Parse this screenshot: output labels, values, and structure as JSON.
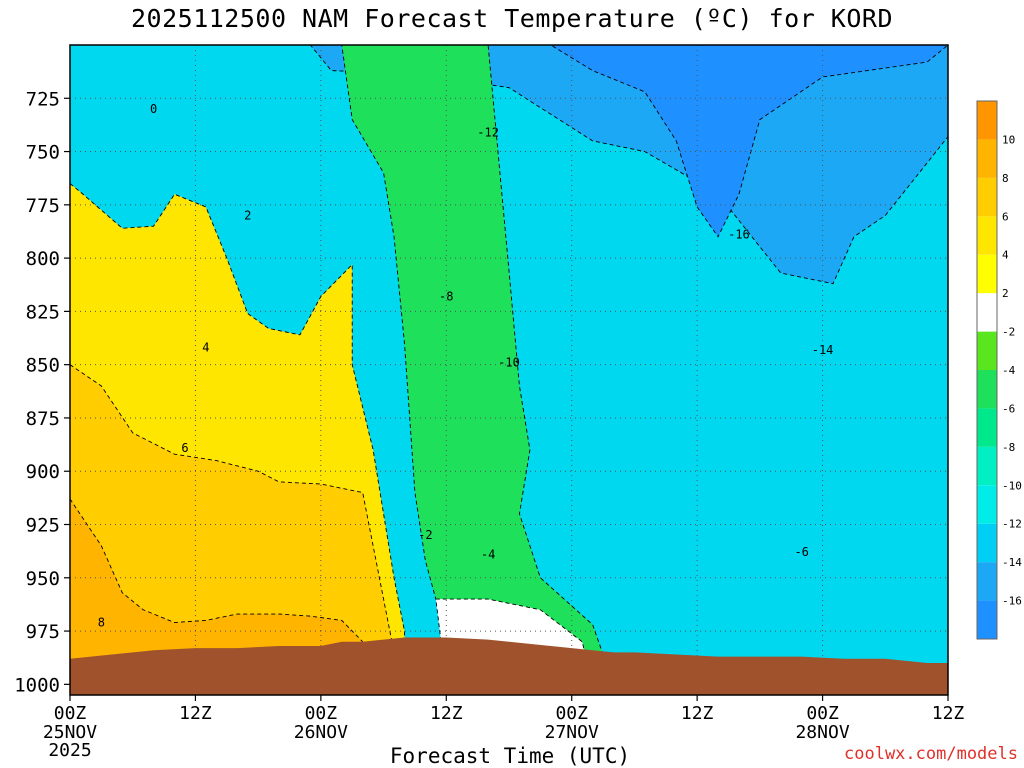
{
  "chart_data": {
    "type": "heatmap",
    "title": "2025112500 NAM Forecast Temperature (ºC) for KORD",
    "xlabel": "Forecast Time (UTC)",
    "ylabel": "",
    "credit": "coolwx.com/models",
    "x_hours_range": [
      0,
      84
    ],
    "y_pressure_range": [
      700,
      1005
    ],
    "x_ticks": [
      {
        "hour": 0,
        "label": "00Z",
        "date": "25NOV",
        "year": "2025"
      },
      {
        "hour": 12,
        "label": "12Z",
        "date": "",
        "year": ""
      },
      {
        "hour": 24,
        "label": "00Z",
        "date": "26NOV",
        "year": ""
      },
      {
        "hour": 36,
        "label": "12Z",
        "date": "",
        "year": ""
      },
      {
        "hour": 48,
        "label": "00Z",
        "date": "27NOV",
        "year": ""
      },
      {
        "hour": 60,
        "label": "12Z",
        "date": "",
        "year": ""
      },
      {
        "hour": 72,
        "label": "00Z",
        "date": "28NOV",
        "year": ""
      },
      {
        "hour": 84,
        "label": "12Z",
        "date": "",
        "year": ""
      }
    ],
    "y_ticks": [
      {
        "p": 725,
        "label": "725"
      },
      {
        "p": 750,
        "label": "750"
      },
      {
        "p": 775,
        "label": "775"
      },
      {
        "p": 800,
        "label": "800"
      },
      {
        "p": 825,
        "label": "825"
      },
      {
        "p": 850,
        "label": "850"
      },
      {
        "p": 875,
        "label": "875"
      },
      {
        "p": 900,
        "label": "900"
      },
      {
        "p": 925,
        "label": "925"
      },
      {
        "p": 950,
        "label": "950"
      },
      {
        "p": 975,
        "label": "975"
      },
      {
        "p": 1000,
        "label": "1000"
      }
    ],
    "colorbar": [
      {
        "min": -18,
        "max": -16,
        "color": "#1e90ff",
        "label": ""
      },
      {
        "min": -16,
        "max": -14,
        "color": "#1ca8f4",
        "label": "-16"
      },
      {
        "min": -14,
        "max": -12,
        "color": "#00cff5",
        "label": "-14"
      },
      {
        "min": -12,
        "max": -10,
        "color": "#00ece8",
        "label": "-12"
      },
      {
        "min": -10,
        "max": -8,
        "color": "#00f0c4",
        "label": "-10"
      },
      {
        "min": -8,
        "max": -6,
        "color": "#00e88c",
        "label": "-8"
      },
      {
        "min": -6,
        "max": -4,
        "color": "#1ee05a",
        "label": "-6"
      },
      {
        "min": -4,
        "max": -2,
        "color": "#5ae61e",
        "label": "-4"
      },
      {
        "min": -2,
        "max": 2,
        "color": "#ffffff",
        "label": "-2"
      },
      {
        "min": 2,
        "max": 4,
        "color": "#ffff00",
        "label": "2"
      },
      {
        "min": 4,
        "max": 6,
        "color": "#ffe600",
        "label": "4"
      },
      {
        "min": 6,
        "max": 8,
        "color": "#ffcd00",
        "label": "6"
      },
      {
        "min": 8,
        "max": 10,
        "color": "#ffb400",
        "label": "8"
      },
      {
        "min": 10,
        "max": 12,
        "color": "#ff9600",
        "label": "10"
      }
    ],
    "regions": [
      {
        "name": "very-cold",
        "points": [
          [
            23,
            700
          ],
          [
            84,
            700
          ],
          [
            84,
            743
          ],
          [
            78,
            780
          ],
          [
            75,
            790
          ],
          [
            73,
            812
          ],
          [
            68,
            807
          ],
          [
            62,
            770
          ],
          [
            55,
            750
          ],
          [
            50,
            745
          ],
          [
            42,
            720
          ],
          [
            35,
            715
          ],
          [
            30,
            713
          ],
          [
            25,
            712
          ]
        ],
        "color": "#1ca8f4"
      },
      {
        "name": "core-cold",
        "points": [
          [
            46,
            700
          ],
          [
            84,
            700
          ],
          [
            82,
            708
          ],
          [
            72,
            715
          ],
          [
            66,
            735
          ],
          [
            64,
            770
          ],
          [
            62,
            790
          ],
          [
            60,
            776
          ],
          [
            58,
            745
          ],
          [
            55,
            722
          ],
          [
            50,
            712
          ]
        ],
        "color": "#1e90ff"
      },
      {
        "name": "frozen-wedge",
        "points": [
          [
            26,
            700
          ],
          [
            40,
            700
          ],
          [
            42,
            806
          ],
          [
            43,
            860
          ],
          [
            44,
            890
          ],
          [
            43,
            920
          ],
          [
            45,
            950
          ],
          [
            50,
            972
          ],
          [
            52,
            1000
          ],
          [
            40,
            1000
          ],
          [
            37,
            975
          ],
          [
            35,
            960
          ],
          [
            34,
            942
          ],
          [
            33,
            910
          ],
          [
            32,
            840
          ],
          [
            31,
            790
          ],
          [
            30,
            760
          ],
          [
            27,
            735
          ],
          [
            26,
            700
          ]
        ],
        "color": "#1ee05a"
      },
      {
        "name": "freeze-bottom",
        "points": [
          [
            35,
            960
          ],
          [
            40,
            960
          ],
          [
            45,
            965
          ],
          [
            49,
            980
          ],
          [
            50,
            1000
          ],
          [
            36,
            1000
          ]
        ],
        "color": "#ffffff"
      },
      {
        "name": "warm-layer",
        "points": [
          [
            0,
            765
          ],
          [
            1,
            769
          ],
          [
            5,
            786
          ],
          [
            8,
            785
          ],
          [
            10,
            770
          ],
          [
            13,
            776
          ],
          [
            15,
            800
          ],
          [
            17,
            826
          ],
          [
            19,
            833
          ],
          [
            22,
            836
          ],
          [
            24,
            818
          ],
          [
            27,
            803
          ],
          [
            27,
            850
          ],
          [
            28,
            870
          ],
          [
            29,
            890
          ],
          [
            30,
            920
          ],
          [
            31,
            950
          ],
          [
            32,
            975
          ],
          [
            32,
            1000
          ],
          [
            0,
            1000
          ]
        ],
        "color": "#ffe600"
      },
      {
        "name": "warm-core",
        "points": [
          [
            0,
            850
          ],
          [
            3,
            860
          ],
          [
            6,
            882
          ],
          [
            10,
            892
          ],
          [
            14,
            895
          ],
          [
            18,
            900
          ],
          [
            20,
            905
          ],
          [
            24,
            906
          ],
          [
            28,
            910
          ],
          [
            29,
            935
          ],
          [
            30,
            960
          ],
          [
            31,
            985
          ],
          [
            31,
            1000
          ],
          [
            0,
            1000
          ]
        ],
        "color": "#ffcd00"
      },
      {
        "name": "warmest",
        "points": [
          [
            0,
            913
          ],
          [
            3,
            935
          ],
          [
            5,
            957
          ],
          [
            7,
            965
          ],
          [
            10,
            971
          ],
          [
            13,
            970
          ],
          [
            16,
            967
          ],
          [
            20,
            967
          ],
          [
            23,
            968
          ],
          [
            26,
            970
          ],
          [
            28,
            980
          ],
          [
            29,
            1000
          ],
          [
            0,
            1000
          ]
        ],
        "color": "#ffb400"
      }
    ],
    "contours": [
      {
        "level": -16,
        "label": "-16",
        "labelPos": [
          64,
          789
        ]
      },
      {
        "level": -14,
        "label": "-14",
        "labelPos": [
          72,
          843
        ]
      },
      {
        "level": -12,
        "label": "-12",
        "labelPos": [
          40,
          741
        ]
      },
      {
        "level": -10,
        "label": "-10",
        "labelPos": [
          42,
          849
        ]
      },
      {
        "level": -8,
        "label": "-8",
        "labelPos": [
          36,
          818
        ]
      },
      {
        "level": -6,
        "label": "-6",
        "labelPos": [
          70,
          938
        ]
      },
      {
        "level": -4,
        "label": "-4",
        "labelPos": [
          40,
          939
        ]
      },
      {
        "level": -2,
        "label": "-2",
        "labelPos": [
          34,
          930
        ]
      },
      {
        "level": 0,
        "label": "0",
        "labelPos": [
          8,
          730
        ]
      },
      {
        "level": 2,
        "label": "2",
        "labelPos": [
          17,
          780
        ]
      },
      {
        "level": 4,
        "label": "4",
        "labelPos": [
          13,
          842
        ]
      },
      {
        "level": 6,
        "label": "6",
        "labelPos": [
          11,
          889
        ]
      },
      {
        "level": 8,
        "label": "8",
        "labelPos": [
          3,
          971
        ]
      }
    ],
    "terrain": {
      "color": "#a0522d",
      "surface_pressure": [
        [
          0,
          988
        ],
        [
          4,
          986
        ],
        [
          8,
          984
        ],
        [
          12,
          983
        ],
        [
          16,
          983
        ],
        [
          20,
          982
        ],
        [
          24,
          982
        ],
        [
          26,
          980
        ],
        [
          28,
          980
        ],
        [
          30,
          979
        ],
        [
          32,
          978
        ],
        [
          34,
          978
        ],
        [
          36,
          978
        ],
        [
          40,
          979
        ],
        [
          44,
          981
        ],
        [
          48,
          983
        ],
        [
          50,
          984
        ],
        [
          52,
          985
        ],
        [
          54,
          985
        ],
        [
          58,
          986
        ],
        [
          62,
          987
        ],
        [
          66,
          987
        ],
        [
          70,
          987
        ],
        [
          74,
          988
        ],
        [
          78,
          988
        ],
        [
          82,
          990
        ],
        [
          84,
          990
        ]
      ]
    }
  }
}
